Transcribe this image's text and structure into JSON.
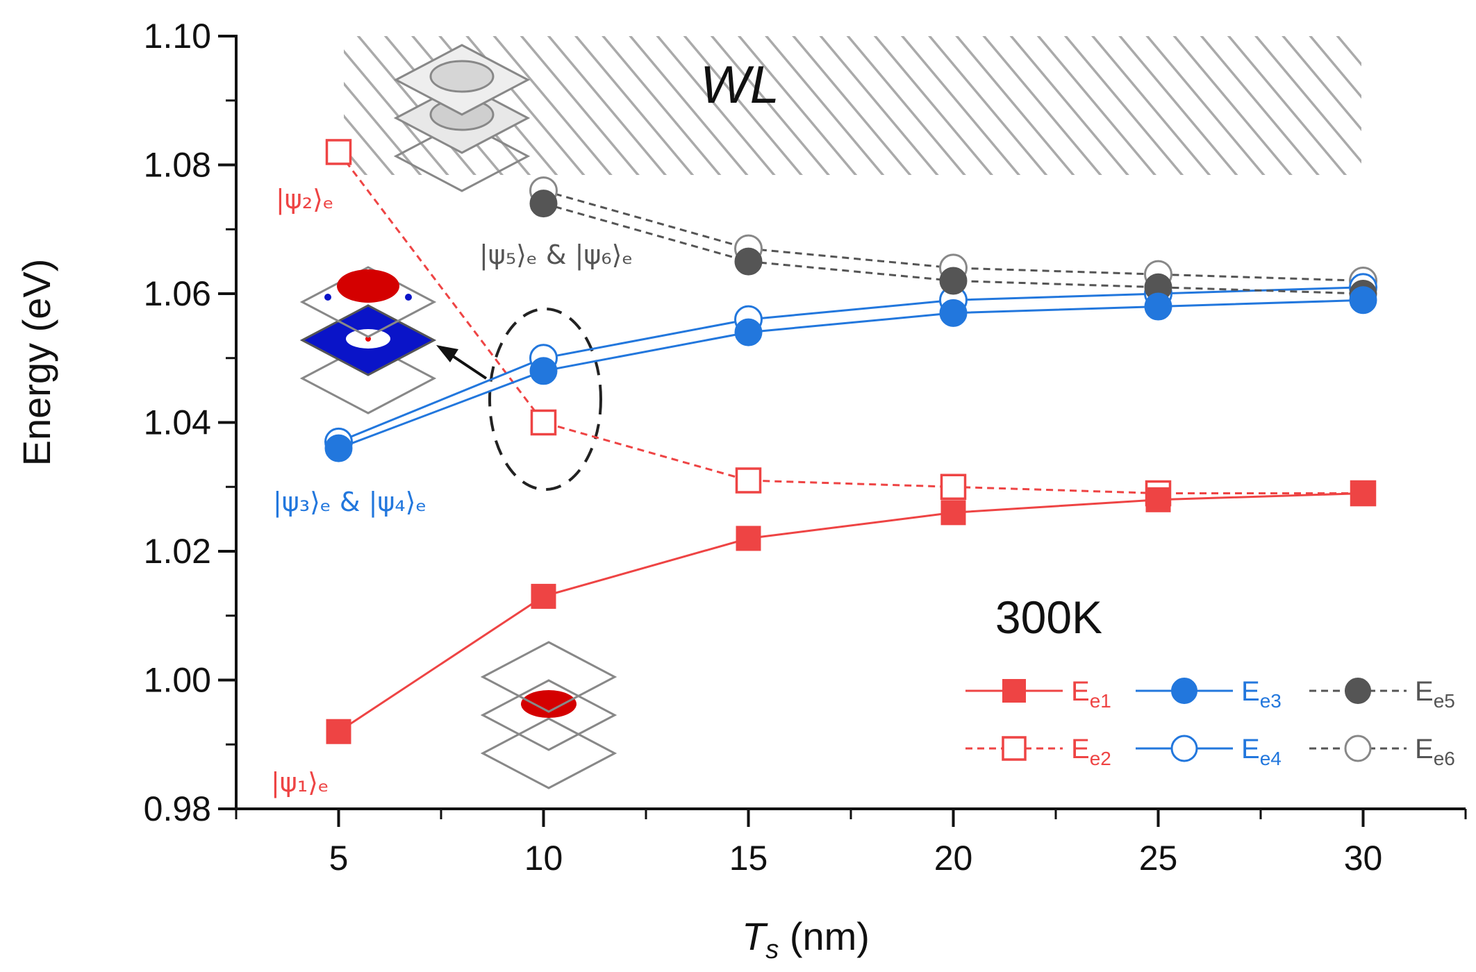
{
  "chart_data": {
    "type": "line",
    "x": [
      5,
      10,
      15,
      20,
      25,
      30
    ],
    "xlabel_main": "T",
    "xlabel_sub": "s",
    "xlabel_unit": " (nm)",
    "ylabel": "Energy (eV)",
    "xlim": [
      2.5,
      32.5
    ],
    "ylim": [
      0.98,
      1.1
    ],
    "xticks": [
      5,
      10,
      15,
      20,
      25,
      30
    ],
    "yticks": [
      0.98,
      1.0,
      1.02,
      1.04,
      1.06,
      1.08,
      1.1
    ],
    "ytick_labels": [
      "0.98",
      "1.00",
      "1.02",
      "1.04",
      "1.06",
      "1.08",
      "1.10"
    ],
    "grid": false,
    "legend_position": "bottom-right",
    "series": [
      {
        "name": "E",
        "sub": "e1",
        "color": "#ee4444",
        "marker": "square-filled",
        "line": "solid",
        "values": [
          0.992,
          1.013,
          1.022,
          1.026,
          1.028,
          1.029
        ]
      },
      {
        "name": "E",
        "sub": "e2",
        "color": "#ee4444",
        "marker": "square-open",
        "line": "dashed",
        "values": [
          1.082,
          1.04,
          1.031,
          1.03,
          1.029,
          1.029
        ]
      },
      {
        "name": "E",
        "sub": "e3",
        "color": "#2277dd",
        "marker": "circle-filled",
        "line": "solid",
        "values": [
          1.036,
          1.048,
          1.054,
          1.057,
          1.058,
          1.059
        ]
      },
      {
        "name": "E",
        "sub": "e4",
        "color": "#2277dd",
        "marker": "circle-open",
        "line": "solid",
        "values": [
          1.037,
          1.05,
          1.056,
          1.059,
          1.06,
          1.061
        ]
      },
      {
        "name": "E",
        "sub": "e5",
        "color": "#555555",
        "marker": "circle-filled",
        "line": "dashed",
        "values": [
          null,
          1.074,
          1.065,
          1.062,
          1.061,
          1.06
        ]
      },
      {
        "name": "E",
        "sub": "e6",
        "color": "#555555",
        "marker": "circle-open",
        "line": "dashed",
        "values": [
          null,
          1.076,
          1.067,
          1.064,
          1.063,
          1.062
        ]
      }
    ],
    "annotations": {
      "wl": "WL",
      "temperature": "300K",
      "psi1": "|ψ₁⟩ₑ",
      "psi2": "|ψ₂⟩ₑ",
      "psi34": "|ψ₃⟩ₑ & |ψ₄⟩ₑ",
      "psi56": "|ψ₅⟩ₑ & |ψ₆⟩ₑ"
    }
  },
  "colors": {
    "red": "#ee4444",
    "blue": "#2277dd",
    "gray": "#555555",
    "hatch": "#aaaaaa"
  }
}
